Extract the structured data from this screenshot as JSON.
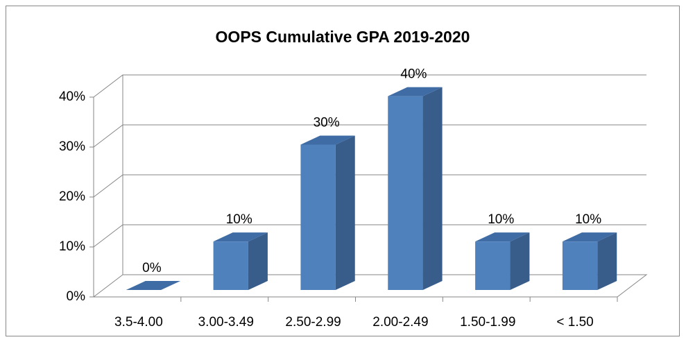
{
  "chart_data": {
    "type": "bar",
    "title": "OOPS Cumulative GPA 2019-2020",
    "categories": [
      "3.5-4.00",
      "3.00-3.49",
      "2.50-2.99",
      "2.00-2.49",
      "1.50-1.99",
      "< 1.50"
    ],
    "values": [
      0,
      10,
      30,
      40,
      10,
      10
    ],
    "value_labels": [
      "0%",
      "10%",
      "30%",
      "40%",
      "10%",
      "10%"
    ],
    "color": "#4f81bd",
    "ylim": [
      0,
      40
    ],
    "yticks": [
      {
        "value": 0,
        "label": "0%"
      },
      {
        "value": 10,
        "label": "10%"
      },
      {
        "value": 20,
        "label": "20%"
      },
      {
        "value": 30,
        "label": "30%"
      },
      {
        "value": 40,
        "label": "40%"
      }
    ],
    "grid": true
  }
}
